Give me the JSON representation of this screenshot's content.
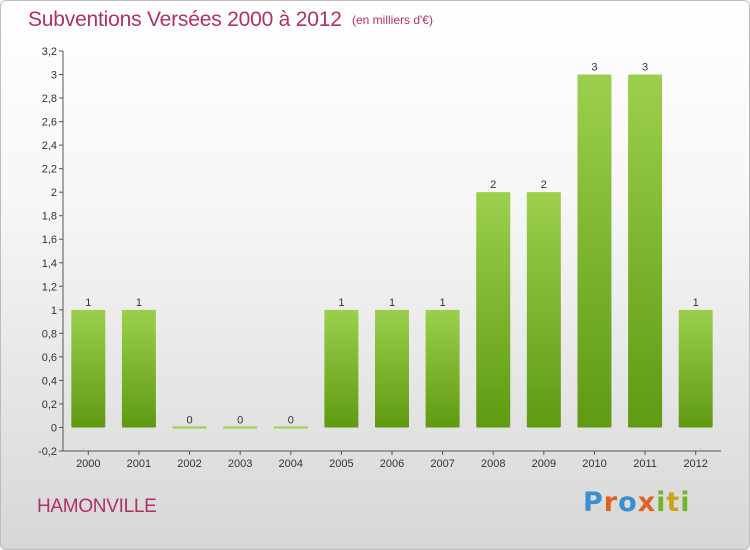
{
  "header": {
    "title": "Subventions Versées 2000 à 2012",
    "unit": "(en milliers d'€)"
  },
  "footer": {
    "town": "HAMONVILLE",
    "logo": "Proxiti"
  },
  "colors": {
    "bar_top": "#9ccf4d",
    "bar_bottom": "#5f9a12",
    "text_accent": "#b0306a"
  },
  "chart_data": {
    "type": "bar",
    "title": "Subventions Versées 2000 à 2012",
    "subtitle": "(en milliers d'€)",
    "xlabel": "",
    "ylabel": "",
    "categories": [
      "2000",
      "2001",
      "2002",
      "2003",
      "2004",
      "2005",
      "2006",
      "2007",
      "2008",
      "2009",
      "2010",
      "2011",
      "2012"
    ],
    "values": [
      1,
      1,
      0,
      0,
      0,
      1,
      1,
      1,
      2,
      2,
      3,
      3,
      1
    ],
    "data_labels": [
      "1",
      "1",
      "0",
      "0",
      "0",
      "1",
      "1",
      "1",
      "2",
      "2",
      "3",
      "3",
      "1"
    ],
    "ylim": [
      -0.2,
      3.2
    ],
    "yticks": [
      -0.2,
      0,
      0.2,
      0.4,
      0.6,
      0.8,
      1,
      1.2,
      1.4,
      1.6,
      1.8,
      2,
      2.2,
      2.4,
      2.6,
      2.8,
      3,
      3.2
    ],
    "ytick_labels": [
      "-0,2",
      "0",
      "0,2",
      "0,4",
      "0,6",
      "0,8",
      "1",
      "1,2",
      "1,4",
      "1,6",
      "1,8",
      "2",
      "2,2",
      "2,4",
      "2,6",
      "2,8",
      "3",
      "3,2"
    ],
    "grid": false,
    "legend": "none"
  }
}
